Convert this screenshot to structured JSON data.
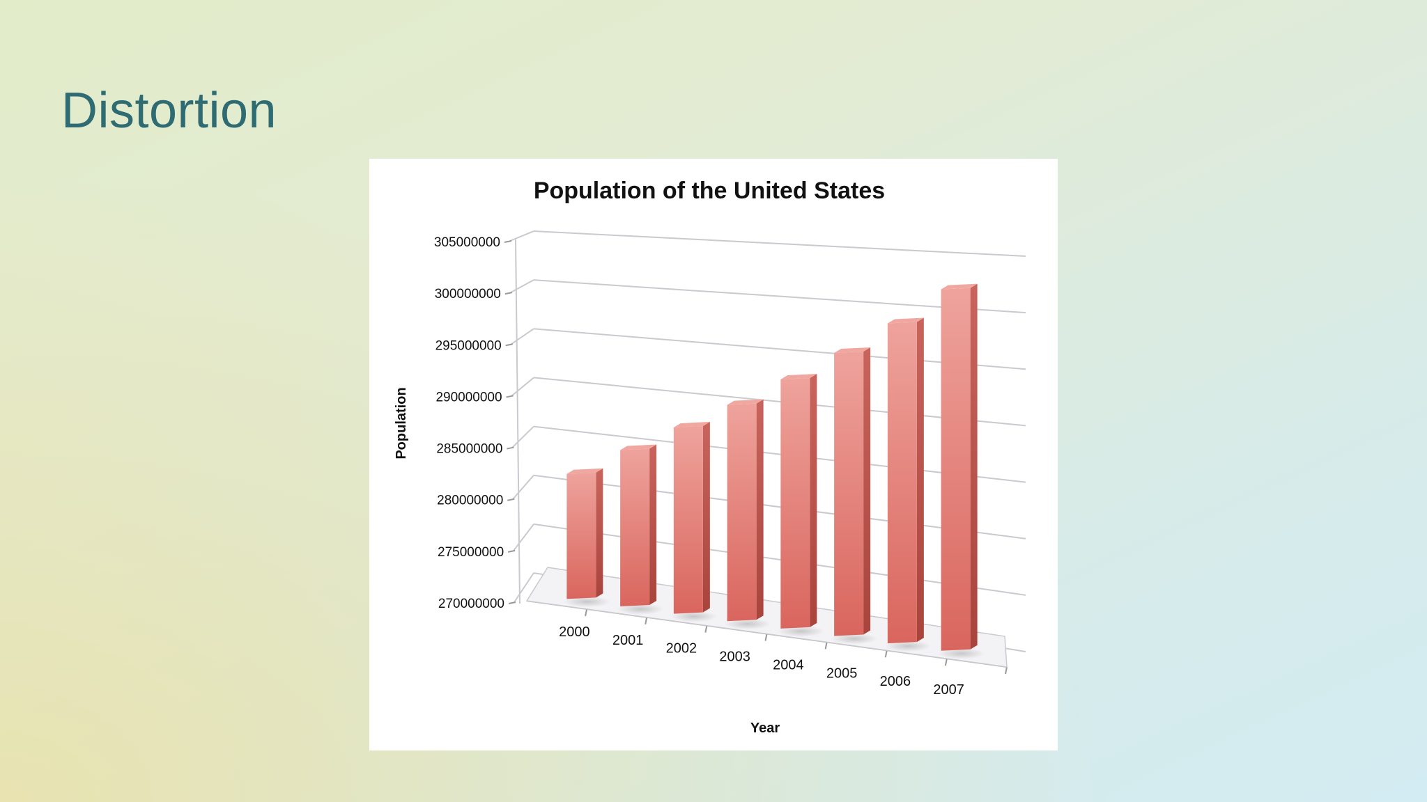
{
  "slide": {
    "title": "Distortion"
  },
  "colors": {
    "title": "#2f6b72",
    "bar_front": "#e27a72",
    "bar_top": "#f0a7a0",
    "bar_side": "#b94f48",
    "gridline": "#c9c9cf"
  },
  "chart_data": {
    "type": "bar",
    "title": "Population of the United States",
    "xlabel": "Year",
    "ylabel": "Population",
    "categories": [
      "2000",
      "2001",
      "2002",
      "2003",
      "2004",
      "2005",
      "2006",
      "2007"
    ],
    "series": [
      {
        "values": [
          282200000,
          285000000,
          287600000,
          290100000,
          292800000,
          295500000,
          298400000,
          301600000
        ]
      }
    ],
    "ylim": [
      270000000,
      305000000
    ],
    "yticks": [
      "270000000",
      "275000000",
      "280000000",
      "285000000",
      "290000000",
      "295000000",
      "300000000",
      "305000000"
    ],
    "grid": true,
    "style": "3d-perspective",
    "legend": "none"
  }
}
